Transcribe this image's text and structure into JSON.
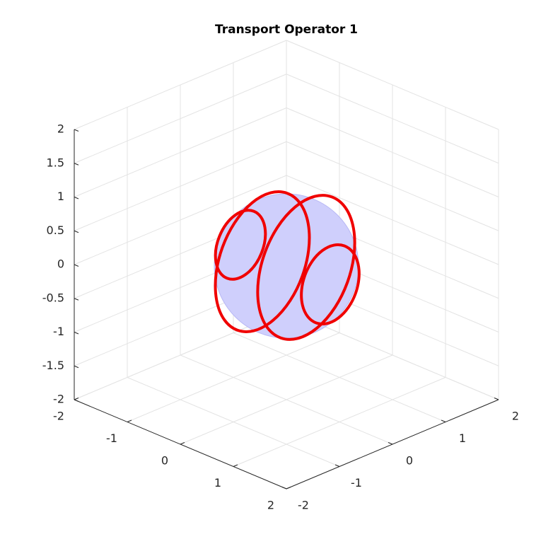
{
  "chart_data": {
    "type": "3d",
    "title": "Transport Operator 1",
    "xlim": [
      -2,
      2
    ],
    "ylim": [
      -2,
      2
    ],
    "zlim": [
      -2,
      2
    ],
    "xticks": [
      -2,
      -1,
      0,
      1,
      2
    ],
    "yticks": [
      -2,
      -1,
      0,
      1,
      2
    ],
    "zticks": [
      -2,
      -1.5,
      -1,
      -0.5,
      0,
      0.5,
      1,
      1.5,
      2
    ],
    "grid": true
  }
}
